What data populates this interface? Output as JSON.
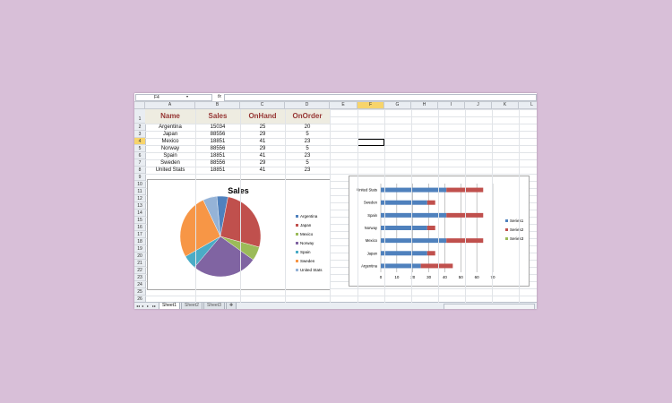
{
  "formula_bar": {
    "name_box": "F4",
    "fx": "fx",
    "formula": ""
  },
  "columns": [
    "A",
    "B",
    "C",
    "D",
    "E",
    "F",
    "G",
    "H",
    "I",
    "J",
    "K",
    "L"
  ],
  "selected_column": "F",
  "rows": [
    "1",
    "2",
    "3",
    "4",
    "5",
    "6",
    "7",
    "8",
    "9",
    "10",
    "11",
    "12",
    "13",
    "14",
    "15",
    "16",
    "17",
    "18",
    "19",
    "20",
    "21",
    "22",
    "23",
    "24",
    "25",
    "26"
  ],
  "selected_row": "4",
  "table": {
    "headers": [
      "Name",
      "Sales",
      "OnHand",
      "OnOrder"
    ],
    "rows": [
      [
        "Argentina",
        "15034",
        "25",
        "20"
      ],
      [
        "Japan",
        "88556",
        "29",
        "5"
      ],
      [
        "Mexico",
        "18851",
        "41",
        "23"
      ],
      [
        "Norway",
        "88556",
        "29",
        "5"
      ],
      [
        "Spain",
        "18851",
        "41",
        "23"
      ],
      [
        "Sweden",
        "88556",
        "29",
        "5"
      ],
      [
        "United Stats",
        "18851",
        "41",
        "23"
      ]
    ]
  },
  "colors": {
    "s1": "#4f81bd",
    "s2": "#c0504d",
    "s3": "#9bbb59",
    "s4": "#8064a2",
    "s5": "#4bacc6",
    "s6": "#f79646",
    "s7": "#95b3d7",
    "header_text": "#963634",
    "header_band": "#eeece1",
    "selection": "#f7d46b"
  },
  "chart_data": [
    {
      "type": "pie",
      "title": "Sales",
      "categories": [
        "Argentina",
        "Japan",
        "Mexico",
        "Norway",
        "Spain",
        "Sweden",
        "United Stats"
      ],
      "values": [
        15034,
        88556,
        18851,
        88556,
        18851,
        88556,
        18851
      ],
      "legend_position": "right"
    },
    {
      "type": "bar",
      "orientation": "horizontal",
      "stacked": true,
      "title": "",
      "categories": [
        "Argentina",
        "Japan",
        "Mexico",
        "Norway",
        "Spain",
        "Sweden",
        "United Stats"
      ],
      "series": [
        {
          "name": "Series1",
          "values": [
            25,
            29,
            41,
            29,
            41,
            29,
            41
          ]
        },
        {
          "name": "Series2",
          "values": [
            20,
            5,
            23,
            5,
            23,
            5,
            23
          ]
        },
        {
          "name": "Series3",
          "values": [
            0,
            0,
            0,
            0,
            0,
            0,
            0
          ]
        }
      ],
      "xlim": [
        0,
        70
      ],
      "xticks": [
        "0",
        "10",
        "20",
        "30",
        "40",
        "50",
        "60",
        "70"
      ],
      "grid": true,
      "legend_position": "right"
    }
  ],
  "sheets": [
    "Sheet1",
    "Sheet2",
    "Sheet3"
  ],
  "active_sheet": "Sheet1",
  "tab_nav": [
    "◂◂",
    "◂",
    "▸",
    "▸▸"
  ]
}
